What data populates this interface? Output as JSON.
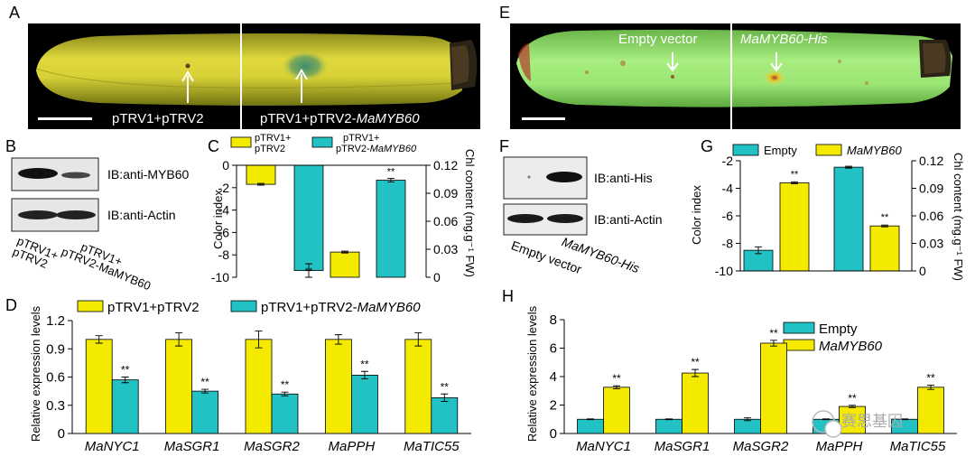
{
  "colors": {
    "yellow": "#f4ea00",
    "teal": "#22c1c3",
    "banana_yellow": "#d9d23a",
    "banana_green": "#9fe67a"
  },
  "panels": {
    "A": {
      "letter": "A",
      "left_label": "pTRV1+pTRV2",
      "right_label_a": "pTRV1+pTRV2-",
      "right_label_b": "MaMYB60"
    },
    "E": {
      "letter": "E",
      "left_label": "Empty vector",
      "right_label": "MaMYB60-His"
    },
    "B": {
      "letter": "B",
      "blot1": "IB:anti-MYB60",
      "blot2": "IB:anti-Actin",
      "lane1_a": "pTRV1+",
      "lane1_b": "pTRV2",
      "lane2_a": "pTRV1+",
      "lane2_b": "pTRV2-MaMYB60"
    },
    "F": {
      "letter": "F",
      "blot1": "IB:anti-His",
      "blot2": "IB:anti-Actin",
      "lane1": "Empty vector",
      "lane2": "MaMYB60-His"
    },
    "C": {
      "letter": "C",
      "legend1_a": "pTRV1+",
      "legend1_b": "pTRV2",
      "legend2_a": "pTRV1+",
      "legend2_b": "pTRV2-MaMYB60",
      "ylabel_left": "Color index",
      "ylabel_right": "Chl content (mg.g⁻¹ FW)"
    },
    "G": {
      "letter": "G",
      "legend1": "Empty",
      "legend2": "MaMYB60",
      "ylabel_left": "Color index",
      "ylabel_right": "Chl content (mg.g⁻¹ FW)"
    },
    "D": {
      "letter": "D",
      "legend1": "pTRV1+pTRV2",
      "legend2_a": "pTRV1+pTRV2-",
      "legend2_b": "MaMYB60",
      "ylabel": "Relative expression levels"
    },
    "H": {
      "letter": "H",
      "legend1": "Empty",
      "legend2": "MaMYB60",
      "ylabel": "Relative expression levels"
    }
  },
  "watermark": "赛思基因",
  "chart_data": [
    {
      "panel": "C",
      "type": "bar",
      "series": [
        {
          "name": "pTRV1+pTRV2"
        },
        {
          "name": "pTRV1+pTRV2-MaMYB60"
        }
      ],
      "color_index": [
        -1.7,
        -9.4
      ],
      "color_index_err": [
        0.08,
        0.6
      ],
      "chl": [
        0.027,
        0.104
      ],
      "chl_err": [
        0.001,
        0.002
      ],
      "left_ylim": [
        -10,
        0
      ],
      "left_yticks": [
        "0",
        "-2",
        "-4",
        "-6",
        "-8",
        "-10"
      ],
      "right_ylim": [
        0,
        0.12
      ],
      "right_yticks": [
        "0",
        "0.03",
        "0.06",
        "0.09",
        "0.12"
      ],
      "sig": "**"
    },
    {
      "panel": "G",
      "type": "bar",
      "series": [
        {
          "name": "Empty"
        },
        {
          "name": "MaMYB60"
        }
      ],
      "color_index": [
        -8.5,
        -3.6
      ],
      "color_index_err": [
        0.25,
        0.07
      ],
      "chl": [
        0.113,
        0.049
      ],
      "chl_err": [
        0.001,
        0.001
      ],
      "left_ylim": [
        -10,
        -2
      ],
      "left_yticks": [
        "-2",
        "-4",
        "-6",
        "-8",
        "-10"
      ],
      "right_ylim": [
        0,
        0.12
      ],
      "right_yticks": [
        "0",
        "0.03",
        "0.06",
        "0.09",
        "0.12"
      ],
      "sig": "**"
    },
    {
      "panel": "D",
      "type": "bar",
      "categories": [
        "MaNYC1",
        "MaSGR1",
        "MaSGR2",
        "MaPPH",
        "MaTIC55"
      ],
      "series": [
        {
          "name": "pTRV1+pTRV2",
          "values": [
            1.0,
            1.0,
            1.0,
            1.0,
            1.0
          ],
          "errors": [
            0.04,
            0.07,
            0.09,
            0.05,
            0.07
          ]
        },
        {
          "name": "pTRV1+pTRV2-MaMYB60",
          "values": [
            0.57,
            0.45,
            0.42,
            0.62,
            0.38
          ],
          "errors": [
            0.03,
            0.02,
            0.02,
            0.04,
            0.04
          ]
        }
      ],
      "ylim": [
        0,
        1.2
      ],
      "yticks": [
        "0",
        "0.3",
        "0.6",
        "0.9",
        "1.2"
      ],
      "sig": "**"
    },
    {
      "panel": "H",
      "type": "bar",
      "categories": [
        "MaNYC1",
        "MaSGR1",
        "MaSGR2",
        "MaPPH",
        "MaTIC55"
      ],
      "series": [
        {
          "name": "Empty",
          "values": [
            1.0,
            1.0,
            1.0,
            1.0,
            1.0
          ],
          "errors": [
            0.03,
            0.03,
            0.1,
            0.03,
            0.03
          ]
        },
        {
          "name": "MaMYB60",
          "values": [
            3.25,
            4.25,
            6.35,
            1.9,
            3.25
          ],
          "errors": [
            0.1,
            0.25,
            0.2,
            0.08,
            0.15
          ]
        }
      ],
      "ylim": [
        0,
        8
      ],
      "yticks": [
        "0",
        "2",
        "4",
        "6",
        "8"
      ],
      "sig": "**"
    }
  ]
}
